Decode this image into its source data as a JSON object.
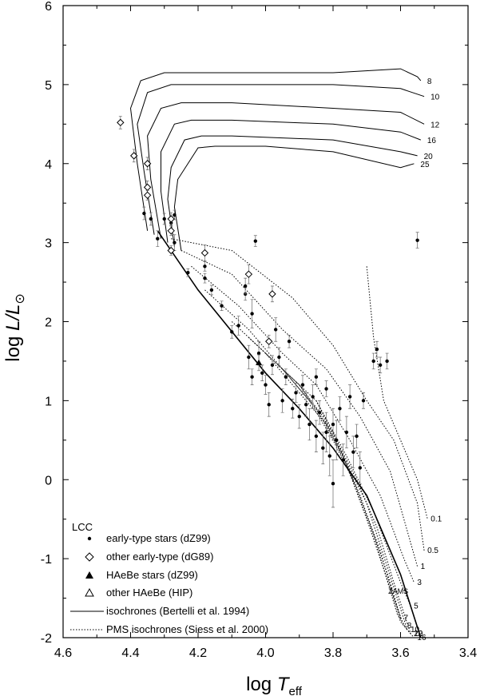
{
  "chart_data": {
    "type": "scatter",
    "xlabel": {
      "main": "log ",
      "sym": "T",
      "sub": "eff"
    },
    "ylabel": {
      "main": "log ",
      "sym": "L/L",
      "sun": "⊙"
    },
    "xlim": [
      4.6,
      3.4
    ],
    "ylim": [
      -2,
      6
    ],
    "x_ticks": [
      "4.6",
      "4.4",
      "4.2",
      "4.0",
      "3.8",
      "3.6",
      "3.4"
    ],
    "y_ticks": [
      "-2",
      "-1",
      "0",
      "1",
      "2",
      "3",
      "4",
      "5",
      "6"
    ],
    "legend": {
      "header": "LCC",
      "entries": [
        {
          "label": "early-type stars (dZ99)",
          "marker": "dot"
        },
        {
          "label": "other early-type (dG89)",
          "marker": "diamond"
        },
        {
          "label": "HAeBe stars (dZ99)",
          "marker": "triangle-filled"
        },
        {
          "label": "other HAeBe (HIP)",
          "marker": "triangle-open"
        },
        {
          "label": "isochrones (Bertelli et al. 1994)",
          "marker": "line-solid"
        },
        {
          "label": "PMS isochrones (Siess et al. 2000)",
          "marker": "line-dotted"
        }
      ]
    },
    "annotations": [
      {
        "text": "ZAMS",
        "x": 3.57,
        "y": -1.3
      }
    ],
    "zams": [
      [
        4.32,
        3.15
      ],
      [
        4.2,
        2.4
      ],
      [
        4.0,
        1.35
      ],
      [
        3.9,
        0.9
      ],
      [
        3.8,
        0.4
      ],
      [
        3.7,
        -0.2
      ],
      [
        3.6,
        -1.2
      ],
      [
        3.54,
        -2.0
      ]
    ],
    "post_ms_isochrones": [
      {
        "label": "8",
        "points": [
          [
            4.35,
            3.15
          ],
          [
            4.38,
            4.0
          ],
          [
            4.4,
            4.7
          ],
          [
            4.37,
            5.05
          ],
          [
            4.3,
            5.15
          ],
          [
            4.1,
            5.15
          ],
          [
            3.8,
            5.15
          ],
          [
            3.6,
            5.2
          ],
          [
            3.55,
            5.1
          ],
          [
            3.54,
            5.05
          ]
        ]
      },
      {
        "label": "10",
        "points": [
          [
            4.33,
            3.1
          ],
          [
            4.36,
            3.9
          ],
          [
            4.38,
            4.5
          ],
          [
            4.35,
            4.9
          ],
          [
            4.28,
            5.0
          ],
          [
            4.1,
            5.0
          ],
          [
            3.8,
            5.0
          ],
          [
            3.6,
            4.95
          ],
          [
            3.53,
            4.85
          ]
        ]
      },
      {
        "label": "12",
        "points": [
          [
            4.31,
            3.05
          ],
          [
            4.34,
            3.8
          ],
          [
            4.35,
            4.35
          ],
          [
            4.31,
            4.7
          ],
          [
            4.25,
            4.77
          ],
          [
            4.1,
            4.77
          ],
          [
            3.8,
            4.7
          ],
          [
            3.6,
            4.65
          ],
          [
            3.53,
            4.5
          ]
        ]
      },
      {
        "label": "16",
        "points": [
          [
            4.29,
            3.0
          ],
          [
            4.31,
            3.65
          ],
          [
            4.31,
            4.15
          ],
          [
            4.27,
            4.5
          ],
          [
            4.22,
            4.55
          ],
          [
            4.1,
            4.55
          ],
          [
            3.8,
            4.5
          ],
          [
            3.6,
            4.4
          ],
          [
            3.54,
            4.3
          ]
        ]
      },
      {
        "label": "20",
        "points": [
          [
            4.27,
            2.95
          ],
          [
            4.29,
            3.55
          ],
          [
            4.28,
            3.95
          ],
          [
            4.24,
            4.3
          ],
          [
            4.19,
            4.35
          ],
          [
            4.1,
            4.35
          ],
          [
            3.8,
            4.3
          ],
          [
            3.6,
            4.15
          ],
          [
            3.55,
            4.1
          ]
        ]
      },
      {
        "label": "25",
        "points": [
          [
            4.25,
            2.9
          ],
          [
            4.27,
            3.45
          ],
          [
            4.26,
            3.8
          ],
          [
            4.2,
            4.2
          ],
          [
            4.15,
            4.22
          ],
          [
            4.0,
            4.22
          ],
          [
            3.8,
            4.15
          ],
          [
            3.6,
            3.95
          ],
          [
            3.56,
            4.0
          ]
        ]
      }
    ],
    "pms_isochrones": [
      {
        "label": "0.1",
        "points": [
          [
            3.7,
            2.7
          ],
          [
            3.68,
            1.8
          ],
          [
            3.65,
            1.0
          ],
          [
            3.6,
            0.5
          ],
          [
            3.55,
            0.0
          ],
          [
            3.52,
            -0.5
          ]
        ]
      },
      {
        "label": "0.5",
        "points": [
          [
            4.28,
            3.05
          ],
          [
            4.1,
            2.9
          ],
          [
            3.92,
            2.3
          ],
          [
            3.8,
            1.7
          ],
          [
            3.7,
            1.0
          ],
          [
            3.62,
            0.5
          ],
          [
            3.55,
            -0.3
          ],
          [
            3.53,
            -0.9
          ]
        ]
      },
      {
        "label": "1",
        "points": [
          [
            4.25,
            2.9
          ],
          [
            4.1,
            2.6
          ],
          [
            3.95,
            1.9
          ],
          [
            3.82,
            1.4
          ],
          [
            3.72,
            0.8
          ],
          [
            3.63,
            0.1
          ],
          [
            3.57,
            -0.8
          ],
          [
            3.55,
            -1.1
          ]
        ]
      },
      {
        "label": "3",
        "points": [
          [
            4.22,
            2.7
          ],
          [
            4.08,
            2.2
          ],
          [
            3.95,
            1.6
          ],
          [
            3.85,
            1.2
          ],
          [
            3.75,
            0.5
          ],
          [
            3.66,
            -0.2
          ],
          [
            3.59,
            -1.0
          ],
          [
            3.56,
            -1.3
          ]
        ]
      },
      {
        "label": "5",
        "points": [
          [
            4.18,
            2.4
          ],
          [
            4.05,
            1.9
          ],
          [
            3.95,
            1.4
          ],
          [
            3.85,
            1.0
          ],
          [
            3.76,
            0.3
          ],
          [
            3.68,
            -0.4
          ],
          [
            3.6,
            -1.3
          ],
          [
            3.57,
            -1.6
          ]
        ]
      },
      {
        "label": "7",
        "points": [
          [
            4.1,
            2.0
          ],
          [
            4.0,
            1.6
          ],
          [
            3.9,
            1.1
          ],
          [
            3.8,
            0.6
          ],
          [
            3.72,
            -0.2
          ],
          [
            3.63,
            -1.3
          ],
          [
            3.6,
            -1.75
          ]
        ]
      },
      {
        "label": "8",
        "points": [
          [
            4.05,
            1.8
          ],
          [
            3.95,
            1.4
          ],
          [
            3.85,
            0.9
          ],
          [
            3.77,
            0.3
          ],
          [
            3.7,
            -0.5
          ],
          [
            3.62,
            -1.5
          ],
          [
            3.59,
            -1.85
          ]
        ]
      },
      {
        "label": "10",
        "points": [
          [
            4.0,
            1.6
          ],
          [
            3.9,
            1.2
          ],
          [
            3.82,
            0.7
          ],
          [
            3.75,
            0.1
          ],
          [
            3.68,
            -0.7
          ],
          [
            3.61,
            -1.7
          ],
          [
            3.58,
            -1.9
          ]
        ]
      },
      {
        "label": "12",
        "points": [
          [
            3.95,
            1.4
          ],
          [
            3.87,
            1.0
          ],
          [
            3.8,
            0.5
          ],
          [
            3.73,
            -0.1
          ],
          [
            3.66,
            -0.9
          ],
          [
            3.6,
            -1.8
          ],
          [
            3.57,
            -1.95
          ]
        ]
      },
      {
        "label": "16",
        "points": [
          [
            3.9,
            1.2
          ],
          [
            3.83,
            0.8
          ],
          [
            3.77,
            0.3
          ],
          [
            3.7,
            -0.3
          ],
          [
            3.64,
            -1.1
          ],
          [
            3.58,
            -1.9
          ],
          [
            3.56,
            -2.0
          ]
        ]
      },
      {
        "label": "20",
        "points": [
          [
            3.85,
            1.0
          ],
          [
            3.79,
            0.5
          ],
          [
            3.73,
            0.0
          ],
          [
            3.67,
            -0.6
          ],
          [
            3.62,
            -1.3
          ],
          [
            3.57,
            -1.95
          ]
        ]
      }
    ],
    "points_early_dZ99": [
      {
        "x": 4.36,
        "y": 3.37,
        "e": 0.08
      },
      {
        "x": 4.34,
        "y": 3.3,
        "e": 0.08
      },
      {
        "x": 4.32,
        "y": 3.05,
        "e": 0.1
      },
      {
        "x": 4.3,
        "y": 3.3,
        "e": 0.07
      },
      {
        "x": 4.28,
        "y": 3.25,
        "e": 0.08
      },
      {
        "x": 4.27,
        "y": 3.0,
        "e": 0.1
      },
      {
        "x": 4.27,
        "y": 3.35,
        "e": 0.06
      },
      {
        "x": 4.23,
        "y": 2.62,
        "e": 0.05
      },
      {
        "x": 4.18,
        "y": 2.55,
        "e": 0.06
      },
      {
        "x": 4.18,
        "y": 2.7,
        "e": 0.06
      },
      {
        "x": 4.16,
        "y": 2.4,
        "e": 0.06
      },
      {
        "x": 4.13,
        "y": 2.2,
        "e": 0.06
      },
      {
        "x": 4.1,
        "y": 1.87,
        "e": 0.08
      },
      {
        "x": 4.08,
        "y": 1.95,
        "e": 0.12
      },
      {
        "x": 4.06,
        "y": 2.35,
        "e": 0.08
      },
      {
        "x": 4.06,
        "y": 2.45,
        "e": 0.1
      },
      {
        "x": 4.05,
        "y": 1.55,
        "e": 0.15
      },
      {
        "x": 4.04,
        "y": 2.1,
        "e": 0.18
      },
      {
        "x": 4.04,
        "y": 1.3,
        "e": 0.1
      },
      {
        "x": 4.03,
        "y": 3.02,
        "e": 0.07
      },
      {
        "x": 4.02,
        "y": 1.6,
        "e": 0.15
      },
      {
        "x": 4.01,
        "y": 1.35,
        "e": 0.1
      },
      {
        "x": 4.0,
        "y": 1.2,
        "e": 0.12
      },
      {
        "x": 3.99,
        "y": 0.95,
        "e": 0.15
      },
      {
        "x": 3.98,
        "y": 1.45,
        "e": 0.12
      },
      {
        "x": 3.97,
        "y": 1.9,
        "e": 0.15
      },
      {
        "x": 3.96,
        "y": 1.55,
        "e": 0.12
      },
      {
        "x": 3.95,
        "y": 1.0,
        "e": 0.15
      },
      {
        "x": 3.94,
        "y": 1.3,
        "e": 0.1
      },
      {
        "x": 3.93,
        "y": 1.75,
        "e": 0.08
      },
      {
        "x": 3.92,
        "y": 0.9,
        "e": 0.12
      },
      {
        "x": 3.91,
        "y": 1.1,
        "e": 0.12
      },
      {
        "x": 3.9,
        "y": 0.8,
        "e": 0.15
      },
      {
        "x": 3.89,
        "y": 1.2,
        "e": 0.12
      },
      {
        "x": 3.88,
        "y": 0.95,
        "e": 0.15
      },
      {
        "x": 3.87,
        "y": 0.7,
        "e": 0.2
      },
      {
        "x": 3.86,
        "y": 1.05,
        "e": 0.15
      },
      {
        "x": 3.85,
        "y": 0.55,
        "e": 0.2
      },
      {
        "x": 3.84,
        "y": 0.85,
        "e": 0.15
      },
      {
        "x": 3.83,
        "y": 0.4,
        "e": 0.2
      },
      {
        "x": 3.82,
        "y": 0.6,
        "e": 0.25
      },
      {
        "x": 3.81,
        "y": 0.3,
        "e": 0.25
      },
      {
        "x": 3.8,
        "y": 0.7,
        "e": 0.2
      },
      {
        "x": 3.8,
        "y": -0.05,
        "e": 0.3
      },
      {
        "x": 3.79,
        "y": 0.5,
        "e": 0.25
      },
      {
        "x": 3.78,
        "y": 0.9,
        "e": 0.15
      },
      {
        "x": 3.77,
        "y": 0.25,
        "e": 0.2
      },
      {
        "x": 3.76,
        "y": 0.6,
        "e": 0.2
      },
      {
        "x": 3.75,
        "y": 1.05,
        "e": 0.15
      },
      {
        "x": 3.74,
        "y": 0.35,
        "e": 0.2
      },
      {
        "x": 3.73,
        "y": 0.55,
        "e": 0.15
      },
      {
        "x": 3.72,
        "y": 0.15,
        "e": 0.2
      },
      {
        "x": 3.71,
        "y": 1.0,
        "e": 0.1
      },
      {
        "x": 3.68,
        "y": 1.5,
        "e": 0.1
      },
      {
        "x": 3.67,
        "y": 1.65,
        "e": 0.1
      },
      {
        "x": 3.66,
        "y": 1.45,
        "e": 0.1
      },
      {
        "x": 3.64,
        "y": 1.5,
        "e": 0.1
      },
      {
        "x": 3.55,
        "y": 3.03,
        "e": 0.1
      },
      {
        "x": 3.85,
        "y": 1.3,
        "e": 0.1
      },
      {
        "x": 3.82,
        "y": 1.15,
        "e": 0.1
      }
    ],
    "points_early_dG89": [
      {
        "x": 4.43,
        "y": 4.52,
        "e": 0.08
      },
      {
        "x": 4.39,
        "y": 4.1,
        "e": 0.08
      },
      {
        "x": 4.35,
        "y": 4.0,
        "e": 0.08
      },
      {
        "x": 4.35,
        "y": 3.7,
        "e": 0.08
      },
      {
        "x": 4.35,
        "y": 3.6,
        "e": 0.06
      },
      {
        "x": 4.28,
        "y": 3.3,
        "e": 0.08
      },
      {
        "x": 4.28,
        "y": 3.15,
        "e": 0.06
      },
      {
        "x": 4.28,
        "y": 2.9,
        "e": 0.06
      },
      {
        "x": 4.18,
        "y": 2.87,
        "e": 0.1
      },
      {
        "x": 4.05,
        "y": 2.6,
        "e": 0.12
      },
      {
        "x": 3.98,
        "y": 2.35,
        "e": 0.1
      },
      {
        "x": 3.99,
        "y": 1.75,
        "e": 0.08
      }
    ],
    "points_HAeBe_dZ99": [
      {
        "x": 4.02,
        "y": 1.48,
        "e": 0.1
      }
    ]
  }
}
